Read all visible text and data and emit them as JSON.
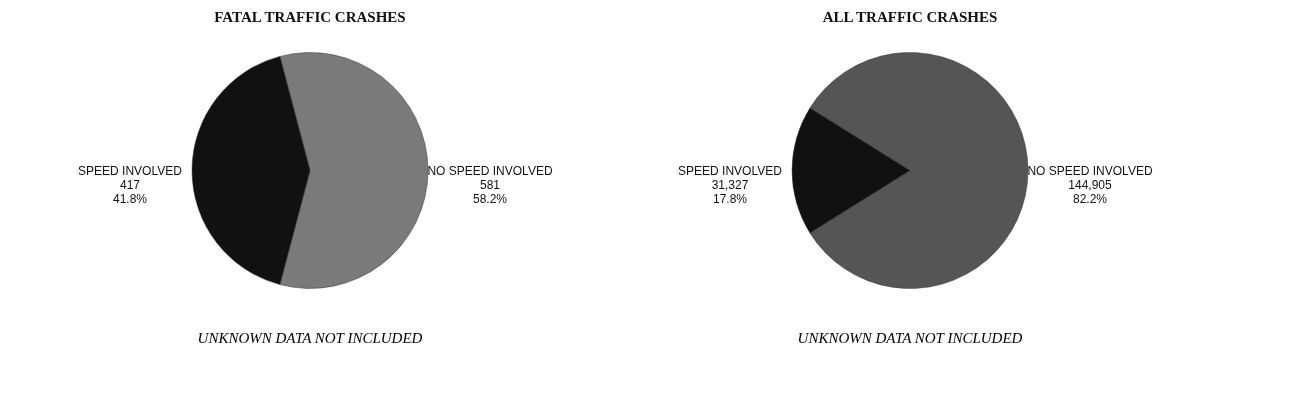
{
  "chart_data": [
    {
      "type": "pie",
      "title": "FATAL TRAFFIC CRASHES",
      "categories": [
        "NO SPEED INVOLVED",
        "SPEED INVOLVED"
      ],
      "values": [
        581,
        417
      ],
      "colors": [
        "#7a7a7a",
        "#111111"
      ],
      "value_labels": [
        "581\n58.2%",
        "417\n41.8%"
      ],
      "annotations": [
        "UNKNOWN DATA NOT INCLUDED"
      ]
    },
    {
      "type": "pie",
      "title": "ALL TRAFFIC CRASHES",
      "categories": [
        "NO SPEED INVOLVED",
        "SPEED INVOLVED"
      ],
      "values": [
        144905,
        31327
      ],
      "colors": [
        "#555555",
        "#111111"
      ],
      "value_labels": [
        "144,905\n82.2%",
        "31,327\n17.8%"
      ],
      "annotations": [
        "UNKNOWN DATA NOT INCLUDED"
      ]
    }
  ]
}
